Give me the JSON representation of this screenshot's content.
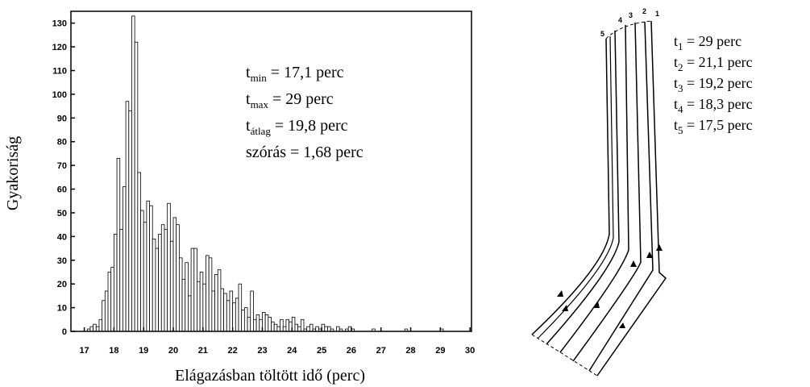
{
  "chart_data": {
    "type": "histogram",
    "x_label": "Elágazásban töltött idő (perc)",
    "y_label": "Gyakoriság",
    "bar_color": "#ffffff",
    "edge_color": "#000000",
    "bins": [
      17.1,
      17.2,
      17.3,
      17.4,
      17.5,
      17.6,
      17.7,
      17.8,
      17.9,
      18.0,
      18.1,
      18.2,
      18.3,
      18.4,
      18.5,
      18.6,
      18.7,
      18.8,
      18.9,
      19.0,
      19.1,
      19.2,
      19.3,
      19.4,
      19.5,
      19.6,
      19.7,
      19.8,
      19.9,
      20.0,
      20.1,
      20.2,
      20.3,
      20.4,
      20.5,
      20.6,
      20.7,
      20.8,
      20.9,
      21.0,
      21.1,
      21.2,
      21.3,
      21.4,
      21.5,
      21.6,
      21.7,
      21.8,
      21.9,
      22.0,
      22.1,
      22.2,
      22.3,
      22.4,
      22.5,
      22.6,
      22.7,
      22.8,
      22.9,
      23.0,
      23.1,
      23.2,
      23.3,
      23.4,
      23.5,
      23.6,
      23.7,
      23.8,
      23.9,
      24.0,
      24.1,
      24.2,
      24.3,
      24.4,
      24.5,
      24.6,
      24.7,
      24.8,
      24.9,
      25.0,
      25.1,
      25.2,
      25.3,
      25.4,
      25.5,
      25.6,
      25.7,
      25.8,
      25.9,
      26.0,
      26.1,
      26.2,
      26.3,
      26.4,
      26.5,
      26.6,
      26.7,
      26.8,
      26.9,
      27.0,
      27.1,
      27.2,
      27.3,
      27.4,
      27.5,
      27.6,
      27.7,
      27.8,
      27.9,
      28.0,
      28.1,
      28.2,
      28.3,
      28.4,
      28.5,
      28.6,
      28.7,
      28.8,
      28.9,
      29.0,
      29.1
    ],
    "values": [
      1,
      2,
      3,
      2,
      5,
      13,
      17,
      25,
      27,
      41,
      73,
      43,
      61,
      97,
      93,
      133,
      122,
      67,
      51,
      46,
      55,
      53,
      39,
      35,
      41,
      45,
      43,
      54,
      38,
      48,
      45,
      31,
      22,
      29,
      15,
      35,
      35,
      21,
      25,
      20,
      32,
      31,
      17,
      24,
      26,
      18,
      16,
      13,
      17,
      12,
      14,
      20,
      9,
      10,
      6,
      17,
      5,
      7,
      5,
      8,
      7,
      6,
      4,
      3,
      2,
      5,
      2,
      5,
      4,
      6,
      3,
      2,
      5,
      1,
      2,
      3,
      1,
      2,
      1,
      3,
      2,
      2,
      1,
      0,
      2,
      1,
      0,
      1,
      2,
      1,
      0,
      0,
      0,
      0,
      0,
      0,
      1,
      0,
      0,
      0,
      0,
      0,
      0,
      0,
      0,
      0,
      0,
      1,
      0,
      0,
      0,
      0,
      0,
      0,
      0,
      0,
      0,
      0,
      0,
      1
    ],
    "xlim": [
      16.55,
      30.05
    ],
    "ylim": [
      0,
      135
    ],
    "xticks": [
      17,
      18,
      19,
      20,
      21,
      22,
      23,
      24,
      25,
      26,
      27,
      28,
      29,
      30
    ],
    "yticks": [
      0,
      10,
      20,
      30,
      40,
      50,
      60,
      70,
      80,
      90,
      100,
      110,
      120,
      130
    ],
    "annotations": [
      {
        "base": "t",
        "sub": "min",
        "text": " = 17,1 perc"
      },
      {
        "base": "t",
        "sub": "max",
        "text": " = 29 perc"
      },
      {
        "base": "t",
        "sub": "átlag",
        "text": " = 19,8 perc"
      },
      {
        "base": "",
        "sub": "",
        "text": "szórás = 1,68 perc"
      }
    ]
  },
  "diagram": {
    "line_numbers": [
      "1",
      "2",
      "3",
      "4",
      "5"
    ],
    "labels": [
      {
        "base": "t",
        "sub": "1",
        "text": " = 29 perc"
      },
      {
        "base": "t",
        "sub": "2",
        "text": " = 21,1 perc"
      },
      {
        "base": "t",
        "sub": "3",
        "text": " = 19,2 perc"
      },
      {
        "base": "t",
        "sub": "4",
        "text": " = 18,3 perc"
      },
      {
        "base": "t",
        "sub": "5",
        "text": " = 17,5 perc"
      }
    ]
  }
}
